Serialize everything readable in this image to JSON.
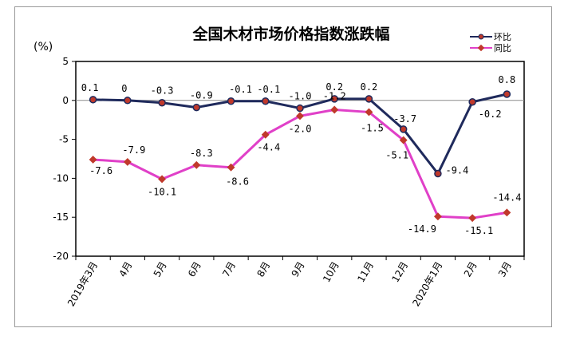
{
  "chart_data": {
    "type": "line",
    "title": "全国木材市场价格指数涨跌幅",
    "unit_label": "(%)",
    "ylim": [
      -20,
      5
    ],
    "yticks": [
      5,
      0,
      -5,
      -10,
      -15,
      -20
    ],
    "grid": false,
    "legend_position": "top-right",
    "categories": [
      "2019年3月",
      "4月",
      "5月",
      "6月",
      "7月",
      "8月",
      "9月",
      "10月",
      "11月",
      "12月",
      "2020年1月",
      "2月",
      "3月"
    ],
    "series": [
      {
        "name": "环比",
        "color": "#1f2a5c",
        "marker": "circle",
        "marker_color": "#c0392b",
        "values": [
          0.1,
          0,
          -0.3,
          -0.9,
          -0.1,
          -0.1,
          -1.0,
          0.2,
          0.2,
          -3.7,
          -9.4,
          -0.2,
          0.8
        ],
        "labels": [
          "0.1",
          "0",
          "-0.3",
          "-0.9",
          "-0.1",
          "-0.1",
          "-1.0",
          "0.2",
          "0.2",
          "-3.7",
          "-9.4",
          "-0.2",
          "0.8"
        ]
      },
      {
        "name": "同比",
        "color": "#e040c8",
        "marker": "diamond",
        "marker_color": "#c0392b",
        "values": [
          -7.6,
          -7.9,
          -10.1,
          -8.3,
          -8.6,
          -4.4,
          -2.0,
          -1.2,
          -1.5,
          -5.1,
          -14.9,
          -15.1,
          -14.4
        ],
        "labels": [
          "-7.6",
          "-7.9",
          "-10.1",
          "-8.3",
          "-8.6",
          "-4.4",
          "-2.0",
          "-1.2",
          "-1.5",
          "-5.1",
          "-14.9",
          "-15.1",
          "-14.4"
        ]
      }
    ]
  }
}
